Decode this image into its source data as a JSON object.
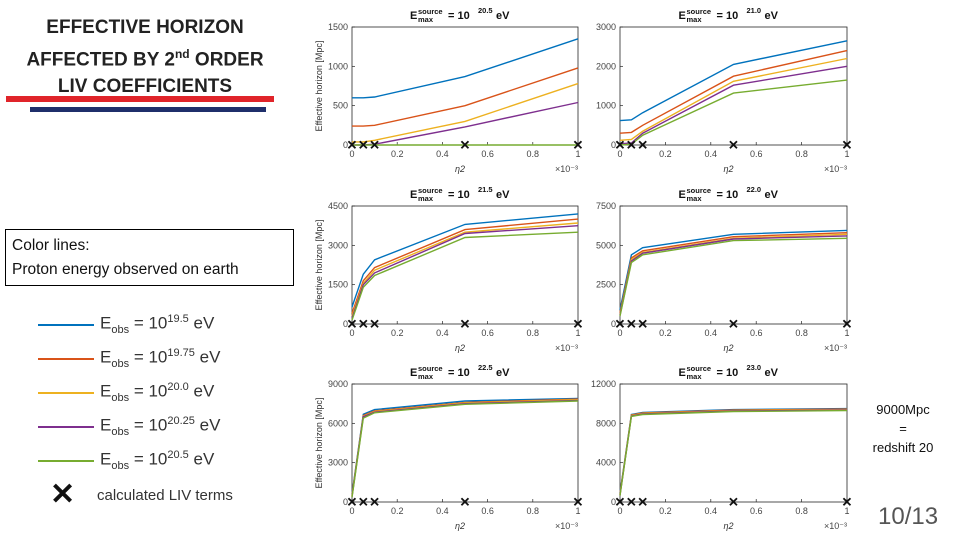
{
  "slide": {
    "title_line1": "EFFECTIVE HORIZON",
    "title_line2_pre": "AFFECTED BY 2",
    "title_line2_sup": "nd",
    "title_line2_post": " ORDER",
    "title_line3": "LIV COEFFICIENTS",
    "box_line1": "Color lines:",
    "box_line2": "Proton energy observed on earth",
    "note_line1": "9000Mpc",
    "note_line2": "=",
    "note_line3": "redshift 20",
    "page": "10/13",
    "accent_red": "#e0242a",
    "accent_navy": "#1f2f6b"
  },
  "legend": {
    "items": [
      {
        "base": "E",
        "sub": "obs",
        "mid": " = 10",
        "exp": "19.5",
        "unit": " eV",
        "color": "#0072bd"
      },
      {
        "base": "E",
        "sub": "obs",
        "mid": " = 10",
        "exp": "19.75",
        "unit": " eV",
        "color": "#d95319"
      },
      {
        "base": "E",
        "sub": "obs",
        "mid": " = 10",
        "exp": "20.0",
        "unit": " eV",
        "color": "#edb120"
      },
      {
        "base": "E",
        "sub": "obs",
        "mid": " = 10",
        "exp": "20.25",
        "unit": " eV",
        "color": "#7e2f8e"
      },
      {
        "base": "E",
        "sub": "obs",
        "mid": " = 10",
        "exp": "20.5",
        "unit": " eV",
        "color": "#77ac30"
      }
    ],
    "liv_marker": "✕",
    "liv_label": "calculated LIV terms"
  },
  "chart_data": [
    {
      "type": "line",
      "title_exp": "20.5",
      "ylabel": "Effective horizon [Mpc]",
      "xlabel": "η2",
      "x_multiplier": "×10⁻³",
      "x": [
        0,
        0.05,
        0.1,
        0.5,
        1.0
      ],
      "xlim": [
        0,
        1
      ],
      "ylim": [
        0,
        1500
      ],
      "xticks": [
        "0",
        "0.2",
        "0.4",
        "0.6",
        "0.8",
        "1"
      ],
      "yticks": [
        0,
        500,
        1000,
        1500
      ],
      "series": [
        {
          "name": "Eobs=10^19.5",
          "values": [
            600,
            600,
            610,
            870,
            1350
          ]
        },
        {
          "name": "Eobs=10^19.75",
          "values": [
            240,
            240,
            250,
            500,
            980
          ]
        },
        {
          "name": "Eobs=10^20.0",
          "values": [
            40,
            40,
            60,
            300,
            780
          ]
        },
        {
          "name": "Eobs=10^20.25",
          "values": [
            0,
            0,
            10,
            230,
            540
          ]
        },
        {
          "name": "Eobs=10^20.5",
          "values": [
            0,
            0,
            0,
            0,
            0
          ]
        }
      ],
      "liv_x": [
        0,
        0.05,
        0.1,
        0.5,
        1.0
      ]
    },
    {
      "type": "line",
      "title_exp": "21.0",
      "ylabel": "",
      "xlabel": "η2",
      "x_multiplier": "×10⁻³",
      "x": [
        0,
        0.05,
        0.1,
        0.5,
        1.0
      ],
      "xlim": [
        0,
        1
      ],
      "ylim": [
        0,
        3000
      ],
      "xticks": [
        "0",
        "0.2",
        "0.4",
        "0.6",
        "0.8",
        "1"
      ],
      "yticks": [
        0,
        1000,
        2000,
        3000
      ],
      "series": [
        {
          "name": "Eobs=10^19.5",
          "values": [
            620,
            640,
            820,
            2050,
            2650
          ]
        },
        {
          "name": "Eobs=10^19.75",
          "values": [
            300,
            320,
            500,
            1750,
            2400
          ]
        },
        {
          "name": "Eobs=10^20.0",
          "values": [
            120,
            140,
            350,
            1620,
            2200
          ]
        },
        {
          "name": "Eobs=10^20.25",
          "values": [
            30,
            50,
            300,
            1520,
            2000
          ]
        },
        {
          "name": "Eobs=10^20.5",
          "values": [
            0,
            20,
            250,
            1320,
            1650
          ]
        }
      ],
      "liv_x": [
        0,
        0.05,
        0.1,
        0.5,
        1.0
      ]
    },
    {
      "type": "line",
      "title_exp": "21.5",
      "ylabel": "Effective horizon [Mpc]",
      "xlabel": "η2",
      "x_multiplier": "×10⁻³",
      "x": [
        0,
        0.05,
        0.1,
        0.5,
        1.0
      ],
      "xlim": [
        0,
        1
      ],
      "ylim": [
        0,
        4500
      ],
      "xticks": [
        "0",
        "0.2",
        "0.4",
        "0.6",
        "0.8",
        "1"
      ],
      "yticks": [
        0,
        1500,
        3000,
        4500
      ],
      "series": [
        {
          "name": "Eobs=10^19.5",
          "values": [
            650,
            1900,
            2450,
            3800,
            4200
          ]
        },
        {
          "name": "Eobs=10^19.75",
          "values": [
            400,
            1650,
            2150,
            3600,
            4000
          ]
        },
        {
          "name": "Eobs=10^20.0",
          "values": [
            300,
            1550,
            2050,
            3500,
            3850
          ]
        },
        {
          "name": "Eobs=10^20.25",
          "values": [
            220,
            1500,
            1950,
            3450,
            3750
          ]
        },
        {
          "name": "Eobs=10^20.5",
          "values": [
            150,
            1400,
            1850,
            3300,
            3500
          ]
        }
      ],
      "liv_x": [
        0,
        0.05,
        0.1,
        0.5,
        1.0
      ]
    },
    {
      "type": "line",
      "title_exp": "22.0",
      "ylabel": "",
      "xlabel": "η2",
      "x_multiplier": "×10⁻³",
      "x": [
        0,
        0.05,
        0.1,
        0.5,
        1.0
      ],
      "xlim": [
        0,
        1
      ],
      "ylim": [
        0,
        7500
      ],
      "xticks": [
        "0",
        "0.2",
        "0.4",
        "0.6",
        "0.8",
        "1"
      ],
      "yticks": [
        0,
        2500,
        5000,
        7500
      ],
      "series": [
        {
          "name": "Eobs=10^19.5",
          "values": [
            900,
            4400,
            4850,
            5700,
            5950
          ]
        },
        {
          "name": "Eobs=10^19.75",
          "values": [
            700,
            4200,
            4650,
            5550,
            5800
          ]
        },
        {
          "name": "Eobs=10^20.0",
          "values": [
            600,
            4100,
            4550,
            5450,
            5700
          ]
        },
        {
          "name": "Eobs=10^20.25",
          "values": [
            550,
            4000,
            4500,
            5400,
            5600
          ]
        },
        {
          "name": "Eobs=10^20.5",
          "values": [
            500,
            3900,
            4400,
            5300,
            5450
          ]
        }
      ],
      "liv_x": [
        0,
        0.05,
        0.1,
        0.5,
        1.0
      ]
    },
    {
      "type": "line",
      "title_exp": "22.5",
      "ylabel": "Effective horizon [Mpc]",
      "xlabel": "η2",
      "x_multiplier": "×10⁻³",
      "x": [
        0,
        0.05,
        0.1,
        0.5,
        1.0
      ],
      "xlim": [
        0,
        1
      ],
      "ylim": [
        0,
        9000
      ],
      "xticks": [
        "0",
        "0.2",
        "0.4",
        "0.6",
        "0.8",
        "1"
      ],
      "yticks": [
        0,
        3000,
        6000,
        9000
      ],
      "series": [
        {
          "name": "Eobs=10^19.5",
          "values": [
            600,
            6700,
            7050,
            7700,
            7900
          ]
        },
        {
          "name": "Eobs=10^19.75",
          "values": [
            500,
            6600,
            6950,
            7600,
            7850
          ]
        },
        {
          "name": "Eobs=10^20.0",
          "values": [
            450,
            6550,
            6900,
            7550,
            7800
          ]
        },
        {
          "name": "Eobs=10^20.25",
          "values": [
            400,
            6500,
            6850,
            7500,
            7750
          ]
        },
        {
          "name": "Eobs=10^20.5",
          "values": [
            350,
            6400,
            6800,
            7450,
            7700
          ]
        }
      ],
      "liv_x": [
        0,
        0.05,
        0.1,
        0.5,
        1.0
      ]
    },
    {
      "type": "line",
      "title_exp": "23.0",
      "ylabel": "",
      "xlabel": "η2",
      "x_multiplier": "×10⁻³",
      "x": [
        0,
        0.05,
        0.1,
        0.5,
        1.0
      ],
      "xlim": [
        0,
        1
      ],
      "ylim": [
        0,
        12000
      ],
      "xticks": [
        "0",
        "0.2",
        "0.4",
        "0.6",
        "0.8",
        "1"
      ],
      "yticks": [
        0,
        4000,
        8000,
        12000
      ],
      "series": [
        {
          "name": "Eobs=10^19.5",
          "values": [
            900,
            8900,
            9100,
            9400,
            9500
          ]
        },
        {
          "name": "Eobs=10^19.75",
          "values": [
            800,
            8850,
            9050,
            9350,
            9450
          ]
        },
        {
          "name": "Eobs=10^20.0",
          "values": [
            750,
            8800,
            9000,
            9300,
            9400
          ]
        },
        {
          "name": "Eobs=10^20.25",
          "values": [
            700,
            8750,
            8950,
            9250,
            9350
          ]
        },
        {
          "name": "Eobs=10^20.5",
          "values": [
            650,
            8700,
            8900,
            9200,
            9300
          ]
        }
      ],
      "liv_x": [
        0,
        0.05,
        0.1,
        0.5,
        1.0
      ]
    }
  ]
}
